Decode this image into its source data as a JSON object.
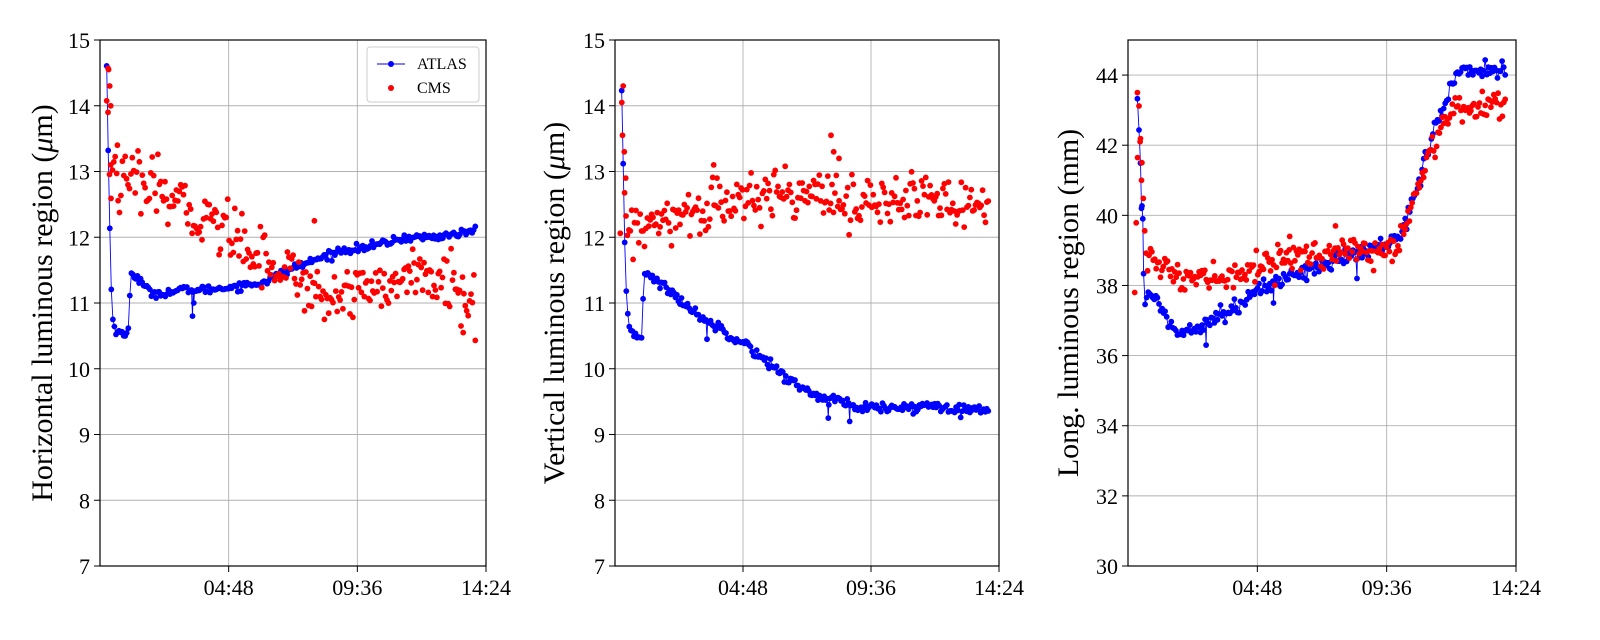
{
  "colors": {
    "atlas": "#0000ff",
    "cms": "#ff0000",
    "grid": "#b0b0b0",
    "axis": "#000000"
  },
  "chart_data": [
    {
      "type": "scatter",
      "ylabel": "Horizontal luminous region (μm)",
      "ylabel_parts": [
        "Horizontal luminous region (",
        "μ",
        "m)"
      ],
      "xlim": [
        0,
        14.4
      ],
      "ylim": [
        7,
        15
      ],
      "x_ticks": [
        {
          "value": 4.8,
          "label": "04:48"
        },
        {
          "value": 9.6,
          "label": "09:36"
        },
        {
          "value": 14.4,
          "label": "14:24"
        }
      ],
      "y_ticks": [
        7,
        8,
        9,
        10,
        11,
        12,
        13,
        14,
        15
      ],
      "grid": true,
      "legend": {
        "position": "top-right",
        "entries": [
          {
            "label": "ATLAS",
            "style": "line-marker"
          },
          {
            "label": "CMS",
            "style": "marker"
          }
        ]
      },
      "series": [
        {
          "name": "ATLAS",
          "style": "line-marker",
          "color": "#0000ff",
          "knots": [
            [
              0.25,
              14.6
            ],
            [
              0.35,
              12.4
            ],
            [
              0.42,
              11.2
            ],
            [
              0.48,
              10.8
            ],
            [
              0.55,
              10.6
            ],
            [
              0.9,
              10.5
            ],
            [
              1.05,
              10.55
            ],
            [
              1.15,
              11.5
            ],
            [
              1.3,
              11.4
            ],
            [
              1.6,
              11.3
            ],
            [
              1.75,
              11.2
            ],
            [
              2.0,
              11.15
            ],
            [
              2.5,
              11.15
            ],
            [
              3.0,
              11.2
            ],
            [
              3.5,
              11.2
            ],
            [
              4.0,
              11.2
            ],
            [
              5.0,
              11.25
            ],
            [
              6.0,
              11.3
            ],
            [
              7.0,
              11.5
            ],
            [
              8.0,
              11.65
            ],
            [
              9.0,
              11.8
            ],
            [
              10.0,
              11.85
            ],
            [
              11.0,
              11.95
            ],
            [
              11.5,
              12.0
            ],
            [
              12.5,
              12.0
            ],
            [
              14.0,
              12.1
            ]
          ],
          "noise": 0.03,
          "count": 240,
          "spikes": [
            [
              3.45,
              10.8
            ],
            [
              3.5,
              11.0
            ]
          ]
        },
        {
          "name": "CMS",
          "style": "marker",
          "color": "#ff0000",
          "knots": [
            [
              0.25,
              13.9
            ],
            [
              0.3,
              14.7
            ],
            [
              0.38,
              12.6
            ],
            [
              0.45,
              13.05
            ],
            [
              0.7,
              12.8
            ],
            [
              1.5,
              12.8
            ],
            [
              2.0,
              12.75
            ],
            [
              3.0,
              12.45
            ],
            [
              4.0,
              12.3
            ],
            [
              5.0,
              12.05
            ],
            [
              6.0,
              11.75
            ],
            [
              7.0,
              11.45
            ],
            [
              7.8,
              11.3
            ],
            [
              8.5,
              11.0
            ],
            [
              9.0,
              11.2
            ],
            [
              10.0,
              11.3
            ],
            [
              10.8,
              11.2
            ],
            [
              11.5,
              11.45
            ],
            [
              12.0,
              11.4
            ],
            [
              13.0,
              11.25
            ],
            [
              13.8,
              11.1
            ],
            [
              14.0,
              10.9
            ]
          ],
          "noise": 0.22,
          "count": 260,
          "spikes": [
            [
              0.32,
              14.55
            ],
            [
              0.36,
              14.3
            ],
            [
              0.4,
              14.0
            ],
            [
              0.3,
              13.9
            ],
            [
              0.4,
              13.1
            ],
            [
              0.65,
              13.4
            ],
            [
              8.0,
              12.25
            ],
            [
              13.55,
              10.55
            ]
          ]
        }
      ]
    },
    {
      "type": "scatter",
      "ylabel": "Vertical luminous region (μm)",
      "ylabel_parts": [
        "Vertical luminous region (",
        "μ",
        "m)"
      ],
      "xlim": [
        0,
        14.4
      ],
      "ylim": [
        7,
        15
      ],
      "x_ticks": [
        {
          "value": 4.8,
          "label": "04:48"
        },
        {
          "value": 9.6,
          "label": "09:36"
        },
        {
          "value": 14.4,
          "label": "14:24"
        }
      ],
      "y_ticks": [
        7,
        8,
        9,
        10,
        11,
        12,
        13,
        14,
        15
      ],
      "grid": true,
      "series": [
        {
          "name": "ATLAS",
          "style": "line-marker",
          "color": "#0000ff",
          "knots": [
            [
              0.25,
              14.2
            ],
            [
              0.3,
              13.2
            ],
            [
              0.4,
              11.2
            ],
            [
              0.48,
              10.8
            ],
            [
              0.55,
              10.6
            ],
            [
              0.8,
              10.5
            ],
            [
              1.0,
              10.5
            ],
            [
              1.1,
              11.5
            ],
            [
              1.5,
              11.35
            ],
            [
              2.0,
              11.2
            ],
            [
              3.0,
              10.85
            ],
            [
              4.0,
              10.6
            ],
            [
              5.0,
              10.35
            ],
            [
              6.0,
              10.0
            ],
            [
              7.0,
              9.7
            ],
            [
              7.5,
              9.6
            ],
            [
              8.0,
              9.55
            ],
            [
              8.5,
              9.5
            ],
            [
              9.0,
              9.4
            ],
            [
              10.0,
              9.4
            ],
            [
              11.0,
              9.4
            ],
            [
              12.0,
              9.45
            ],
            [
              13.0,
              9.4
            ],
            [
              14.0,
              9.35
            ]
          ],
          "noise": 0.04,
          "count": 240,
          "spikes": [
            [
              3.45,
              10.45
            ],
            [
              8.0,
              9.25
            ],
            [
              8.8,
              9.2
            ]
          ]
        },
        {
          "name": "CMS",
          "style": "marker",
          "color": "#ff0000",
          "knots": [
            [
              0.2,
              12.0
            ],
            [
              0.25,
              13.8
            ],
            [
              0.3,
              14.0
            ],
            [
              0.4,
              12.2
            ],
            [
              0.6,
              12.1
            ],
            [
              1.0,
              12.15
            ],
            [
              2.0,
              12.2
            ],
            [
              3.0,
              12.4
            ],
            [
              4.0,
              12.5
            ],
            [
              5.0,
              12.55
            ],
            [
              6.0,
              12.65
            ],
            [
              7.0,
              12.7
            ],
            [
              7.5,
              12.8
            ],
            [
              8.0,
              12.75
            ],
            [
              8.5,
              12.55
            ],
            [
              9.0,
              12.45
            ],
            [
              10.0,
              12.5
            ],
            [
              11.0,
              12.6
            ],
            [
              12.0,
              12.55
            ],
            [
              13.0,
              12.5
            ],
            [
              14.0,
              12.5
            ]
          ],
          "noise": 0.2,
          "count": 260,
          "spikes": [
            [
              0.28,
              13.55
            ],
            [
              0.35,
              13.3
            ],
            [
              0.4,
              12.9
            ],
            [
              8.1,
              13.55
            ],
            [
              8.2,
              13.3
            ],
            [
              8.4,
              13.2
            ],
            [
              3.7,
              13.1
            ]
          ]
        }
      ]
    },
    {
      "type": "scatter",
      "ylabel": "Long. luminous region (mm)",
      "ylabel_parts": [
        "Long. luminous region (mm)"
      ],
      "xlim": [
        0,
        14.4
      ],
      "ylim": [
        30,
        45
      ],
      "x_ticks": [
        {
          "value": 4.8,
          "label": "04:48"
        },
        {
          "value": 9.6,
          "label": "09:36"
        },
        {
          "value": 14.4,
          "label": "14:24"
        }
      ],
      "y_ticks": [
        30,
        32,
        34,
        36,
        38,
        40,
        42,
        44
      ],
      "grid": true,
      "series": [
        {
          "name": "ATLAS",
          "style": "line-marker",
          "color": "#0000ff",
          "knots": [
            [
              0.35,
              43.3
            ],
            [
              0.45,
              42.0
            ],
            [
              0.55,
              39.5
            ],
            [
              0.6,
              37.5
            ],
            [
              0.8,
              37.6
            ],
            [
              1.0,
              37.7
            ],
            [
              1.3,
              37.3
            ],
            [
              1.5,
              37.0
            ],
            [
              1.8,
              36.6
            ],
            [
              2.0,
              36.7
            ],
            [
              3.0,
              37.0
            ],
            [
              4.0,
              37.4
            ],
            [
              5.0,
              37.9
            ],
            [
              6.0,
              38.3
            ],
            [
              7.0,
              38.5
            ],
            [
              8.0,
              38.8
            ],
            [
              9.0,
              39.0
            ],
            [
              10.0,
              39.3
            ],
            [
              10.5,
              40.3
            ],
            [
              11.0,
              41.5
            ],
            [
              11.5,
              42.7
            ],
            [
              12.0,
              43.7
            ],
            [
              12.4,
              44.2
            ],
            [
              13.0,
              44.1
            ],
            [
              14.0,
              44.2
            ]
          ],
          "noise": 0.12,
          "count": 240,
          "spikes": [
            [
              0.5,
              40.2
            ],
            [
              0.55,
              39.9
            ],
            [
              2.9,
              36.3
            ],
            [
              5.4,
              37.5
            ],
            [
              8.5,
              38.2
            ]
          ]
        },
        {
          "name": "CMS",
          "style": "marker",
          "color": "#ff0000",
          "knots": [
            [
              0.25,
              37.9
            ],
            [
              0.4,
              43.4
            ],
            [
              0.55,
              40.8
            ],
            [
              0.7,
              39.0
            ],
            [
              1.0,
              38.6
            ],
            [
              1.5,
              38.4
            ],
            [
              2.0,
              38.1
            ],
            [
              3.0,
              38.2
            ],
            [
              4.0,
              38.3
            ],
            [
              5.0,
              38.6
            ],
            [
              6.0,
              38.8
            ],
            [
              7.0,
              38.9
            ],
            [
              8.0,
              38.9
            ],
            [
              9.0,
              39.0
            ],
            [
              10.0,
              39.1
            ],
            [
              10.5,
              40.2
            ],
            [
              11.0,
              41.2
            ],
            [
              11.5,
              42.2
            ],
            [
              12.0,
              43.1
            ],
            [
              12.5,
              43.1
            ],
            [
              13.0,
              43.1
            ],
            [
              14.0,
              43.2
            ]
          ],
          "noise": 0.2,
          "count": 260,
          "spikes": [
            [
              0.35,
              43.5
            ],
            [
              0.45,
              42.1
            ],
            [
              0.5,
              41.0
            ],
            [
              7.7,
              39.7
            ],
            [
              6.0,
              39.4
            ]
          ]
        }
      ]
    }
  ]
}
